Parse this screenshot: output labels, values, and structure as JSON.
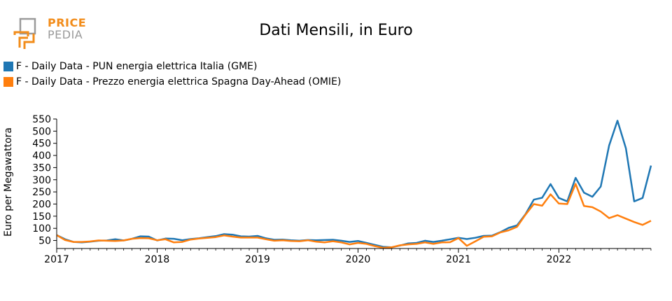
{
  "logo": {
    "line1": "PRICE",
    "line2": "PEDIA"
  },
  "colors": {
    "series1": "#1f77b4",
    "series2": "#ff7f0e",
    "logo_accent": "#f28c1a",
    "logo_gray": "#9a9a9a"
  },
  "chart_data": {
    "type": "line",
    "title": "Dati Mensili, in Euro",
    "xlabel": "",
    "ylabel": "Euro per Megawattora",
    "ylim": [
      17,
      550
    ],
    "xlim": [
      2017.0,
      2022.917
    ],
    "yticks": [
      50,
      100,
      150,
      200,
      250,
      300,
      350,
      400,
      450,
      500,
      550
    ],
    "xticks": [
      2017,
      2018,
      2019,
      2020,
      2021,
      2022
    ],
    "x_start": 2017.0,
    "x_step_months": 1,
    "series": [
      {
        "name": "F - Daily Data - PUN energia elettrica Italia (GME)",
        "color": "#1f77b4",
        "values": [
          72,
          55,
          44,
          42,
          45,
          49,
          50,
          55,
          50,
          57,
          67,
          66,
          50,
          58,
          57,
          51,
          56,
          59,
          64,
          68,
          76,
          74,
          67,
          66,
          69,
          59,
          53,
          54,
          51,
          49,
          52,
          51,
          52,
          53,
          49,
          44,
          48,
          40,
          32,
          24,
          22,
          29,
          38,
          40,
          49,
          44,
          49,
          55,
          61,
          56,
          61,
          69,
          70,
          84,
          102,
          112,
          158,
          218,
          226,
          282,
          225,
          211,
          308,
          247,
          230,
          272,
          441,
          543,
          430,
          211,
          225,
          358
        ]
      },
      {
        "name": "F - Daily Data - Prezzo energia elettrica Spagna Day-Ahead (OMIE)",
        "color": "#ff7f0e",
        "values": [
          72,
          52,
          44,
          44,
          46,
          50,
          49,
          48,
          50,
          57,
          60,
          59,
          51,
          55,
          42,
          44,
          54,
          58,
          61,
          64,
          71,
          66,
          62,
          62,
          62,
          55,
          49,
          51,
          48,
          47,
          51,
          45,
          42,
          47,
          42,
          34,
          40,
          36,
          27,
          20,
          22,
          30,
          34,
          36,
          42,
          36,
          42,
          43,
          60,
          28,
          46,
          65,
          67,
          83,
          92,
          106,
          156,
          200,
          193,
          240,
          202,
          200,
          283,
          192,
          187,
          169,
          142,
          154,
          140,
          126,
          114,
          131
        ]
      }
    ]
  }
}
